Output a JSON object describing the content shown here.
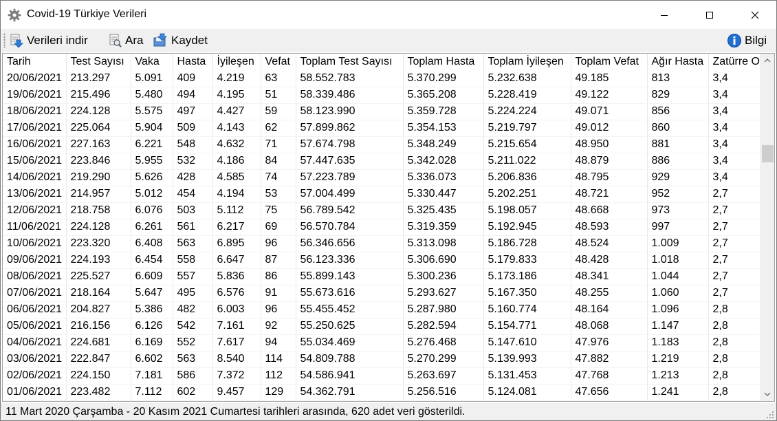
{
  "window": {
    "title": "Covid-19 Türkiye Verileri"
  },
  "icons": {
    "app": "gear-icon",
    "download": "download-icon",
    "search": "search-icon",
    "save": "save-icon",
    "info": "info-icon"
  },
  "toolbar": {
    "download_label": "Verileri indir",
    "search_label": "Ara",
    "save_label": "Kaydet",
    "info_label": "Bilgi"
  },
  "table": {
    "columns": [
      "Tarih",
      "Test Sayısı",
      "Vaka",
      "Hasta",
      "İyileşen",
      "Vefat",
      "Toplam Test Sayısı",
      "Toplam Hasta",
      "Toplam İyileşen",
      "Toplam Vefat",
      "Ağır Hasta",
      "Zatürre Oranı"
    ],
    "rows": [
      [
        "20/06/2021",
        "213.297",
        "5.091",
        "409",
        "4.219",
        "63",
        "58.552.783",
        "5.370.299",
        "5.232.638",
        "49.185",
        "813",
        "3,4"
      ],
      [
        "19/06/2021",
        "215.496",
        "5.480",
        "494",
        "4.195",
        "51",
        "58.339.486",
        "5.365.208",
        "5.228.419",
        "49.122",
        "829",
        "3,4"
      ],
      [
        "18/06/2021",
        "224.128",
        "5.575",
        "497",
        "4.427",
        "59",
        "58.123.990",
        "5.359.728",
        "5.224.224",
        "49.071",
        "856",
        "3,4"
      ],
      [
        "17/06/2021",
        "225.064",
        "5.904",
        "509",
        "4.143",
        "62",
        "57.899.862",
        "5.354.153",
        "5.219.797",
        "49.012",
        "860",
        "3,4"
      ],
      [
        "16/06/2021",
        "227.163",
        "6.221",
        "548",
        "4.632",
        "71",
        "57.674.798",
        "5.348.249",
        "5.215.654",
        "48.950",
        "881",
        "3,4"
      ],
      [
        "15/06/2021",
        "223.846",
        "5.955",
        "532",
        "4.186",
        "84",
        "57.447.635",
        "5.342.028",
        "5.211.022",
        "48.879",
        "886",
        "3,4"
      ],
      [
        "14/06/2021",
        "219.290",
        "5.626",
        "428",
        "4.585",
        "74",
        "57.223.789",
        "5.336.073",
        "5.206.836",
        "48.795",
        "929",
        "3,4"
      ],
      [
        "13/06/2021",
        "214.957",
        "5.012",
        "454",
        "4.194",
        "53",
        "57.004.499",
        "5.330.447",
        "5.202.251",
        "48.721",
        "952",
        "2,7"
      ],
      [
        "12/06/2021",
        "218.758",
        "6.076",
        "503",
        "5.112",
        "75",
        "56.789.542",
        "5.325.435",
        "5.198.057",
        "48.668",
        "973",
        "2,7"
      ],
      [
        "11/06/2021",
        "224.128",
        "6.261",
        "561",
        "6.217",
        "69",
        "56.570.784",
        "5.319.359",
        "5.192.945",
        "48.593",
        "997",
        "2,7"
      ],
      [
        "10/06/2021",
        "223.320",
        "6.408",
        "563",
        "6.895",
        "96",
        "56.346.656",
        "5.313.098",
        "5.186.728",
        "48.524",
        "1.009",
        "2,7"
      ],
      [
        "09/06/2021",
        "224.193",
        "6.454",
        "558",
        "6.647",
        "87",
        "56.123.336",
        "5.306.690",
        "5.179.833",
        "48.428",
        "1.018",
        "2,7"
      ],
      [
        "08/06/2021",
        "225.527",
        "6.609",
        "557",
        "5.836",
        "86",
        "55.899.143",
        "5.300.236",
        "5.173.186",
        "48.341",
        "1.044",
        "2,7"
      ],
      [
        "07/06/2021",
        "218.164",
        "5.647",
        "495",
        "6.576",
        "91",
        "55.673.616",
        "5.293.627",
        "5.167.350",
        "48.255",
        "1.060",
        "2,7"
      ],
      [
        "06/06/2021",
        "204.827",
        "5.386",
        "482",
        "6.003",
        "96",
        "55.455.452",
        "5.287.980",
        "5.160.774",
        "48.164",
        "1.096",
        "2,8"
      ],
      [
        "05/06/2021",
        "216.156",
        "6.126",
        "542",
        "7.161",
        "92",
        "55.250.625",
        "5.282.594",
        "5.154.771",
        "48.068",
        "1.147",
        "2,8"
      ],
      [
        "04/06/2021",
        "224.681",
        "6.169",
        "552",
        "7.617",
        "94",
        "55.034.469",
        "5.276.468",
        "5.147.610",
        "47.976",
        "1.183",
        "2,8"
      ],
      [
        "03/06/2021",
        "222.847",
        "6.602",
        "563",
        "8.540",
        "114",
        "54.809.788",
        "5.270.299",
        "5.139.993",
        "47.882",
        "1.219",
        "2,8"
      ],
      [
        "02/06/2021",
        "224.150",
        "7.181",
        "586",
        "7.372",
        "112",
        "54.586.941",
        "5.263.697",
        "5.131.453",
        "47.768",
        "1.213",
        "2,8"
      ],
      [
        "01/06/2021",
        "223.482",
        "7.112",
        "602",
        "9.457",
        "129",
        "54.362.791",
        "5.256.516",
        "5.124.081",
        "47.656",
        "1.241",
        "2,8"
      ]
    ]
  },
  "status": {
    "text": "11 Mart 2020 Çarşamba - 20 Kasım 2021 Cumartesi tarihleri arasında, 620 adet veri gösterildi."
  }
}
